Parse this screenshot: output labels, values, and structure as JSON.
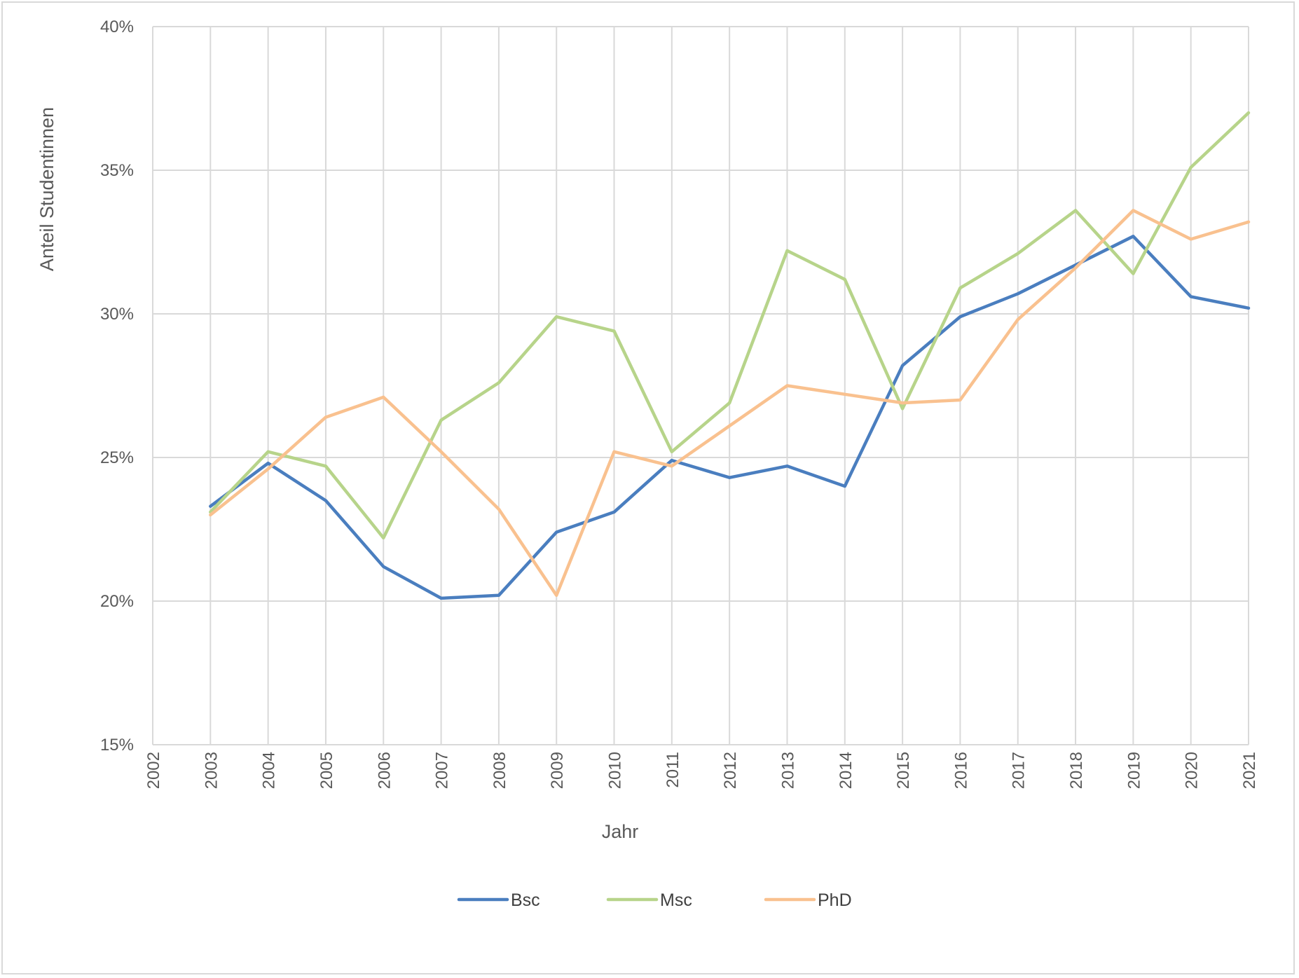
{
  "chart_data": {
    "type": "line",
    "title": "",
    "xlabel": "Jahr",
    "ylabel": "Anteil Studentinnen",
    "categories": [
      "2002",
      "2003",
      "2004",
      "2005",
      "2006",
      "2007",
      "2008",
      "2009",
      "2010",
      "2011",
      "2012",
      "2013",
      "2014",
      "2015",
      "2016",
      "2017",
      "2018",
      "2019",
      "2020",
      "2021"
    ],
    "ylim": [
      0.15,
      0.4
    ],
    "yticks": [
      "15%",
      "20%",
      "25%",
      "30%",
      "35%",
      "40%"
    ],
    "ytick_values": [
      0.15,
      0.2,
      0.25,
      0.3,
      0.35,
      0.4
    ],
    "grid": true,
    "legend_position": "bottom",
    "series": [
      {
        "name": "Bsc",
        "color": "#4a7ebf",
        "values": [
          null,
          0.233,
          0.248,
          0.235,
          0.212,
          0.201,
          0.202,
          0.224,
          0.231,
          0.249,
          0.243,
          0.247,
          0.24,
          0.282,
          0.299,
          0.307,
          0.317,
          0.327,
          0.306,
          0.302
        ]
      },
      {
        "name": "Msc",
        "color": "#b7d48a",
        "values": [
          null,
          0.231,
          0.252,
          0.247,
          0.222,
          0.263,
          0.276,
          0.299,
          0.294,
          0.252,
          0.269,
          0.322,
          0.312,
          0.267,
          0.309,
          0.321,
          0.336,
          0.314,
          0.351,
          0.37
        ]
      },
      {
        "name": "PhD",
        "color": "#f9c18f",
        "values": [
          null,
          0.23,
          0.246,
          0.264,
          0.271,
          0.252,
          0.232,
          0.202,
          0.252,
          0.247,
          0.261,
          0.275,
          0.272,
          0.269,
          0.27,
          0.298,
          0.316,
          0.336,
          0.326,
          0.332
        ]
      }
    ]
  }
}
